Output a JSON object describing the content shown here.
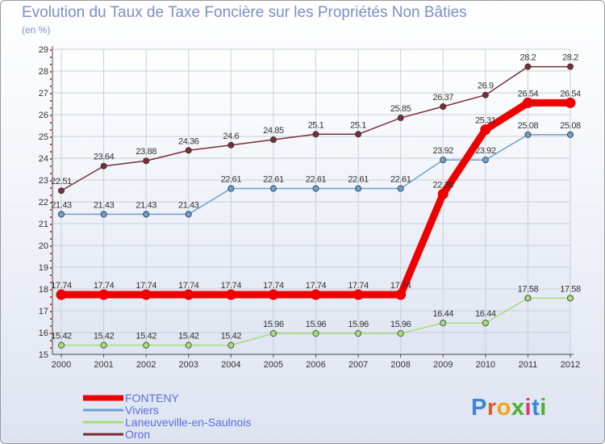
{
  "header": {
    "title": "Evolution du Taux de Taxe Foncière sur les Propriétés Non Bâties",
    "subtitle": "(en %)"
  },
  "logo": {
    "text": "Proxiti",
    "letters": [
      "P",
      "r",
      "o",
      "x",
      "i",
      "t",
      "i"
    ],
    "colors": [
      "#3a86d6",
      "#e05a2b",
      "#f2a31b",
      "#4caf2f",
      "#d83a7c",
      "#3a86d6",
      "#4caf2f"
    ]
  },
  "chart_data": {
    "type": "line",
    "title": "Evolution du Taux de Taxe Foncière sur les Propriétés Non Bâties",
    "ylabel": "(en %)",
    "xlabel": "",
    "ylim": [
      15,
      29
    ],
    "yticks": [
      15,
      16,
      17,
      18,
      19,
      20,
      21,
      22,
      23,
      24,
      25,
      26,
      27,
      28,
      29
    ],
    "categories": [
      "2000",
      "2001",
      "2002",
      "2003",
      "2004",
      "2005",
      "2006",
      "2007",
      "2008",
      "2009",
      "2010",
      "2011",
      "2012"
    ],
    "series": [
      {
        "name": "FONTENY",
        "color": "#ee0000",
        "width": 9,
        "values": [
          17.74,
          17.74,
          17.74,
          17.74,
          17.74,
          17.74,
          17.74,
          17.74,
          17.74,
          22.36,
          25.31,
          26.54,
          26.54
        ],
        "labels": [
          "17.74",
          "17.74",
          "17.74",
          "17.74",
          "17.74",
          "17.74",
          "17.74",
          "17.74",
          "17.74",
          "22.36",
          "25.31",
          "26.54",
          "26.54"
        ]
      },
      {
        "name": "Viviers",
        "color": "#6a9fd4",
        "width": 1.5,
        "values": [
          21.43,
          21.43,
          21.43,
          21.43,
          22.61,
          22.61,
          22.61,
          22.61,
          22.61,
          23.92,
          23.92,
          25.08,
          25.08
        ],
        "labels": [
          "21.43",
          "21.43",
          "21.43",
          "21.43",
          "22.61",
          "22.61",
          "22.61",
          "22.61",
          "22.61",
          "23.92",
          "23.92",
          "25.08",
          "25.08"
        ]
      },
      {
        "name": "Laneuveville-en-Saulnois",
        "color": "#a6dc7a",
        "width": 1.5,
        "values": [
          15.42,
          15.42,
          15.42,
          15.42,
          15.42,
          15.96,
          15.96,
          15.96,
          15.96,
          16.44,
          16.44,
          17.58,
          17.58
        ],
        "labels": [
          "15.42",
          "15.42",
          "15.42",
          "15.42",
          "15.42",
          "15.96",
          "15.96",
          "15.96",
          "15.96",
          "16.44",
          "16.44",
          "17.58",
          "17.58"
        ]
      },
      {
        "name": "Oron",
        "color": "#7a2e36",
        "width": 1.5,
        "values": [
          22.51,
          23.64,
          23.88,
          24.36,
          24.6,
          24.85,
          25.1,
          25.1,
          25.85,
          26.37,
          26.9,
          28.2,
          28.2
        ],
        "labels": [
          "22.51",
          "23.64",
          "23.88",
          "24.36",
          "24.6",
          "24.85",
          "25.1",
          "25.1",
          "25.85",
          "26.37",
          "26.9",
          "28.2",
          "28.2"
        ]
      }
    ],
    "label_order": [
      "Laneuveville-en-Saulnois",
      "Viviers",
      "Oron",
      "FONTENY"
    ],
    "draw_order": [
      "Laneuveville-en-Saulnois",
      "Viviers",
      "Oron",
      "FONTENY"
    ],
    "legend_position": "bottom-left"
  }
}
